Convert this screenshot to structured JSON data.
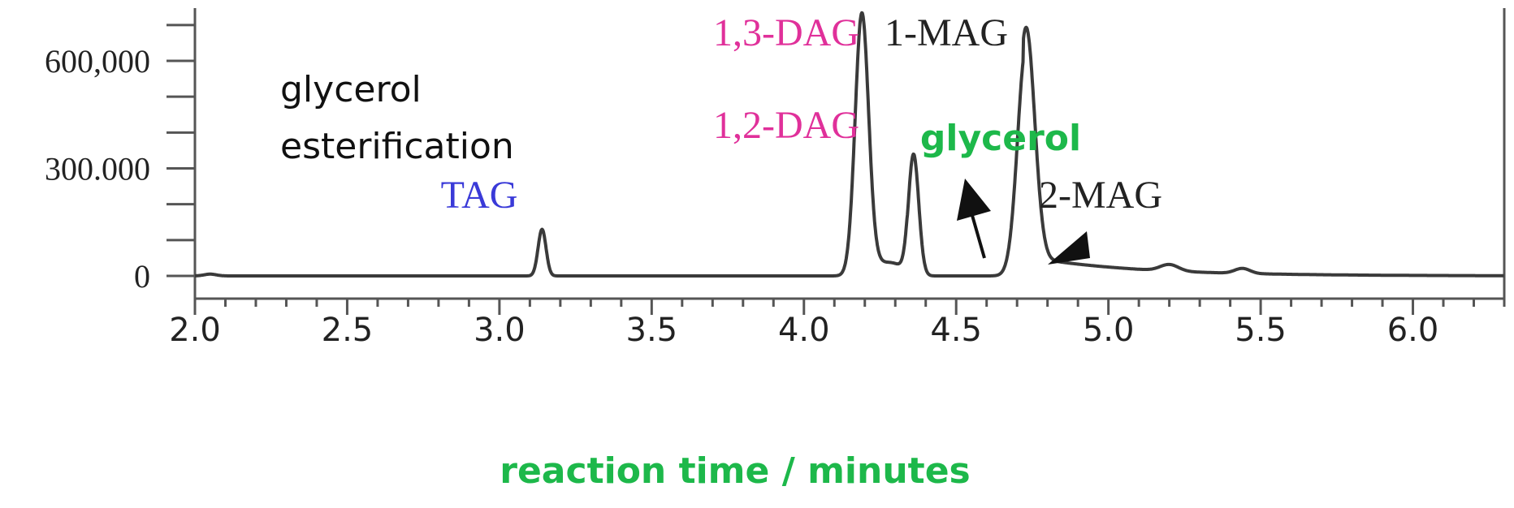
{
  "chart_data": {
    "type": "line",
    "title": "",
    "xlabel": "reaction time / minutes",
    "ylabel": "",
    "xlim": [
      2.0,
      6.3
    ],
    "ylim": [
      0,
      750000
    ],
    "x_ticks": [
      "2.0",
      "2.5",
      "3.0",
      "3.5",
      "4.0",
      "4.5",
      "5.0",
      "5.5",
      "6.0"
    ],
    "y_ticks": [
      {
        "value": 0,
        "label": "0"
      },
      {
        "value": 300000,
        "label": "300.000"
      },
      {
        "value": 600000,
        "label": "600,000"
      }
    ],
    "grid": false,
    "line_color": "#3a3a3a",
    "peaks": [
      {
        "label": "TAG",
        "x": 3.14,
        "y": 135000,
        "color": "#3a3ad8"
      },
      {
        "label": "1,3-DAG",
        "x": 4.19,
        "y": 725000,
        "color": "#e0309a"
      },
      {
        "label": "1,2-DAG",
        "x": 4.36,
        "y": 355000,
        "color": "#e0309a"
      },
      {
        "label": "1-MAG",
        "x": 4.73,
        "y": 675000,
        "color": "#222222"
      },
      {
        "label": "glycerol",
        "x": 5.2,
        "y": 38000,
        "color": "#1db84a"
      },
      {
        "label": "2-MAG",
        "x": 5.44,
        "y": 32000,
        "color": "#222222"
      }
    ],
    "annotation": "glycerol\nesterification",
    "annotation_lines": [
      "glycerol",
      "esterification"
    ],
    "xlabel_color": "#1db84a"
  }
}
